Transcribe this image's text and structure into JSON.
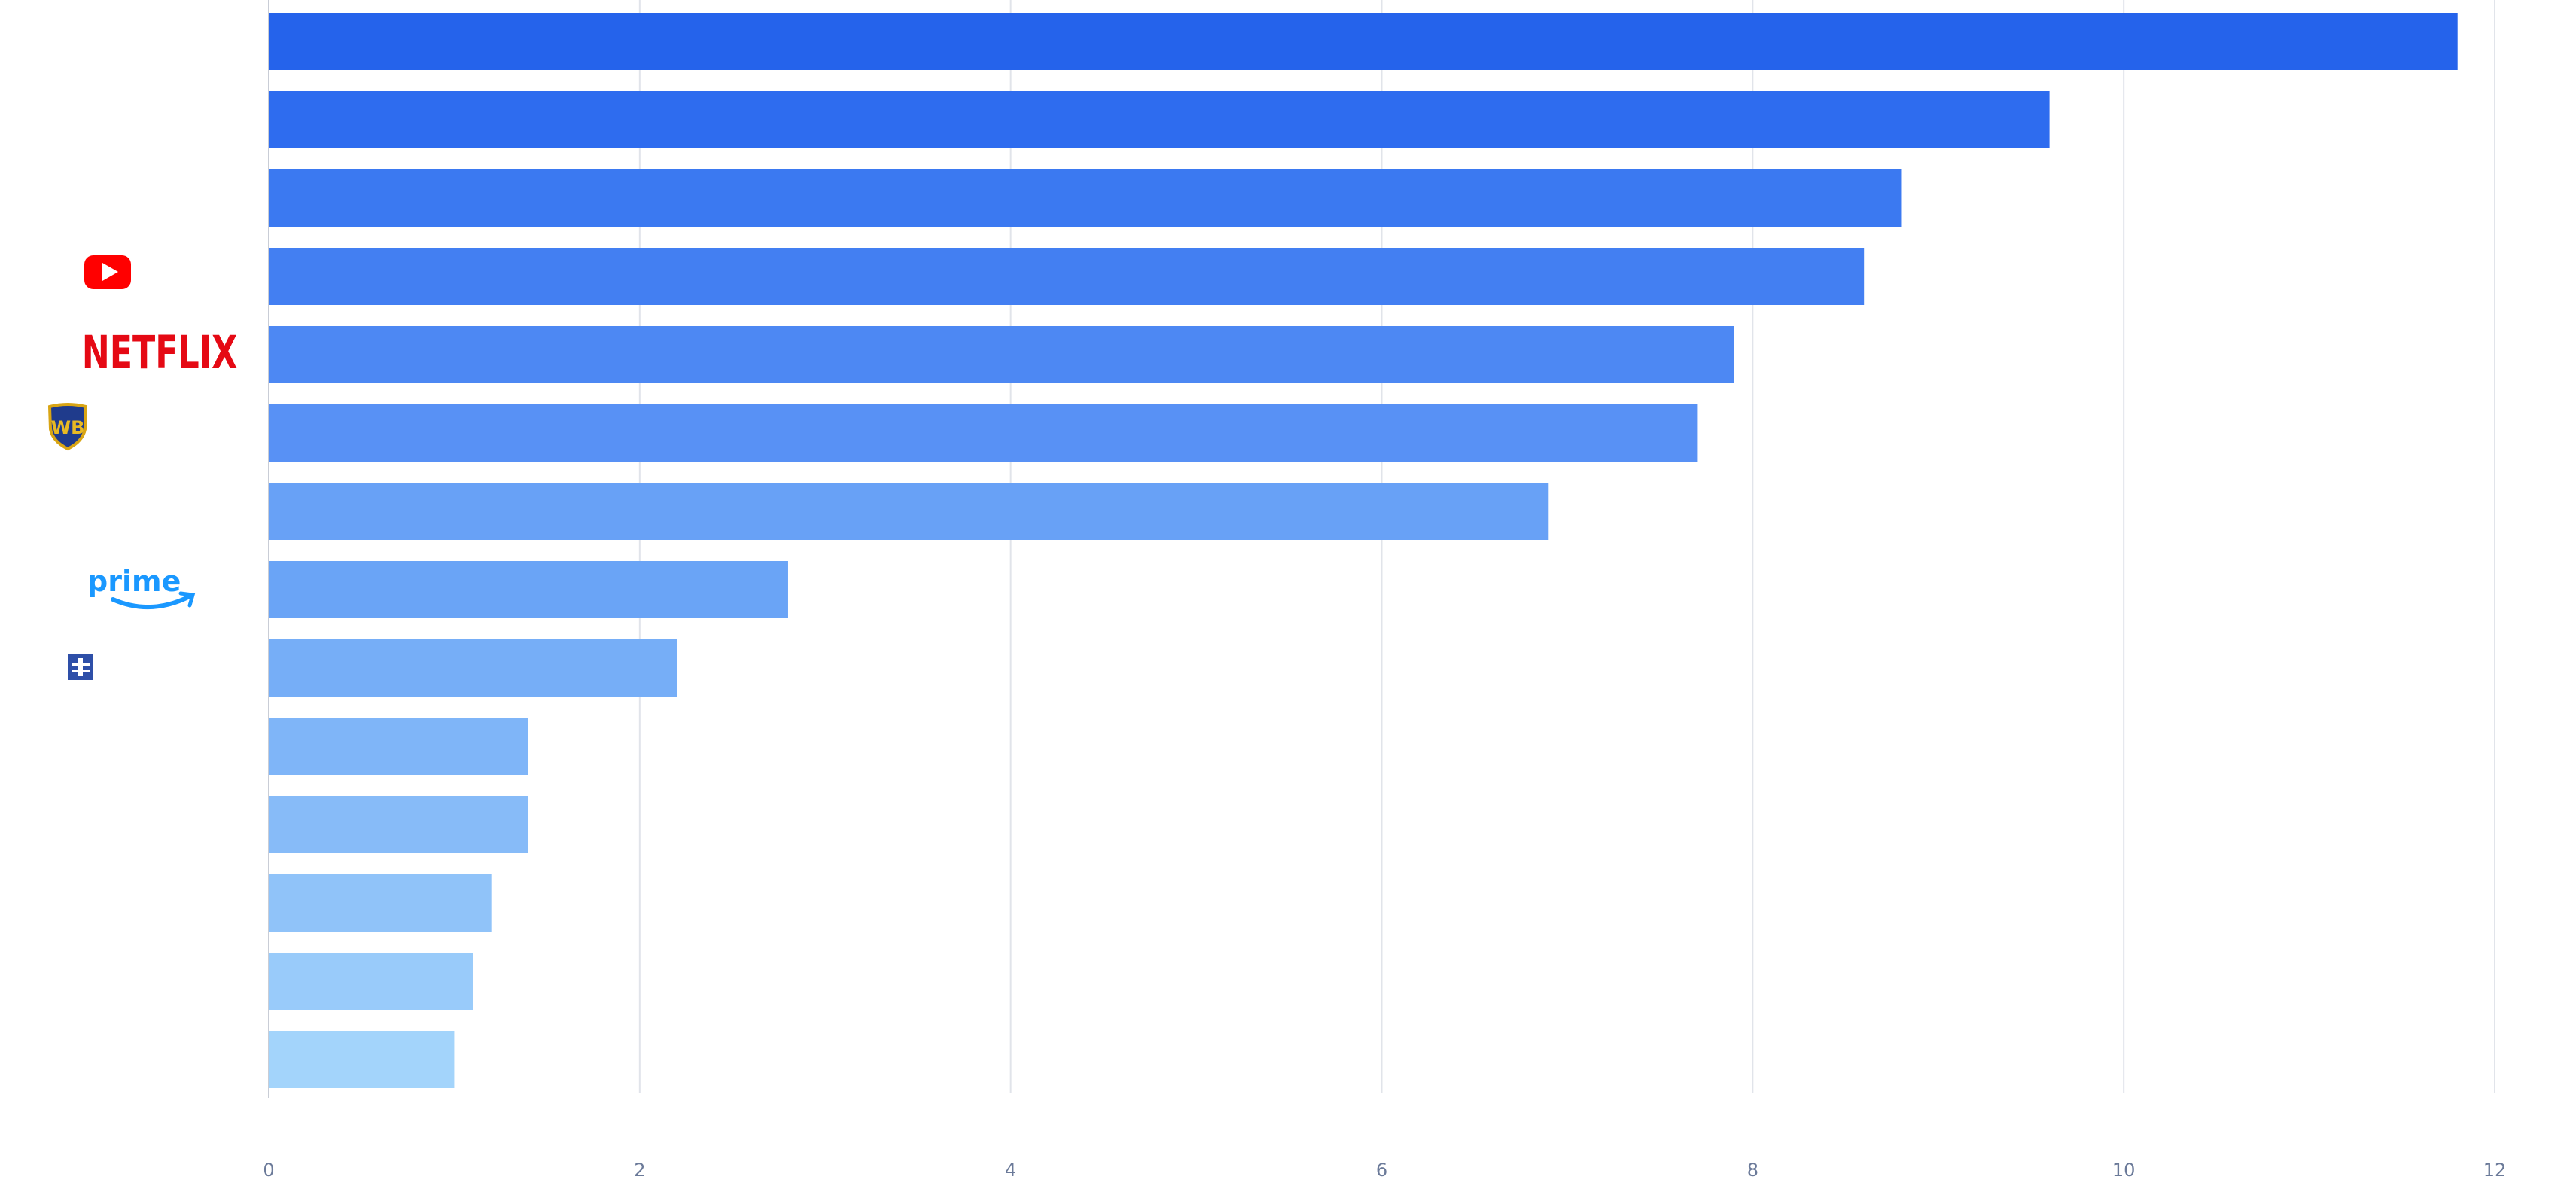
{
  "chart_data": {
    "type": "bar",
    "orientation": "horizontal",
    "title": "",
    "xlabel": "",
    "ylabel": "",
    "xlim": [
      0,
      12
    ],
    "x_ticks": [
      "0",
      "2",
      "4",
      "6",
      "8",
      "10",
      "12"
    ],
    "grid": true,
    "legend": "none",
    "values": [
      11.8,
      9.6,
      8.8,
      8.6,
      7.9,
      7.7,
      6.9,
      2.8,
      2.2,
      1.4,
      1.4,
      1.2,
      1.1,
      1.0
    ],
    "category_logos": [
      {
        "row": 4,
        "icon": "youtube-logo-icon"
      },
      {
        "row": 5,
        "icon": "netflix-logo-icon",
        "text": "NETFLIX"
      },
      {
        "row": 6,
        "icon": "warner-bros-logo-icon"
      },
      {
        "row": 8,
        "icon": "prime-video-logo-icon",
        "text": "prime"
      },
      {
        "row": 9,
        "icon": "small-blue-logo-icon"
      }
    ],
    "bar_colors": [
      "#2563eb",
      "#2e6cef",
      "#3b79f1",
      "#437ff2",
      "#4d88f3",
      "#5891f5",
      "#68a1f6",
      "#6aa4f6",
      "#76aef7",
      "#7fb5f8",
      "#87bbf8",
      "#90c3f9",
      "#99cbfa",
      "#a3d4fb"
    ]
  }
}
